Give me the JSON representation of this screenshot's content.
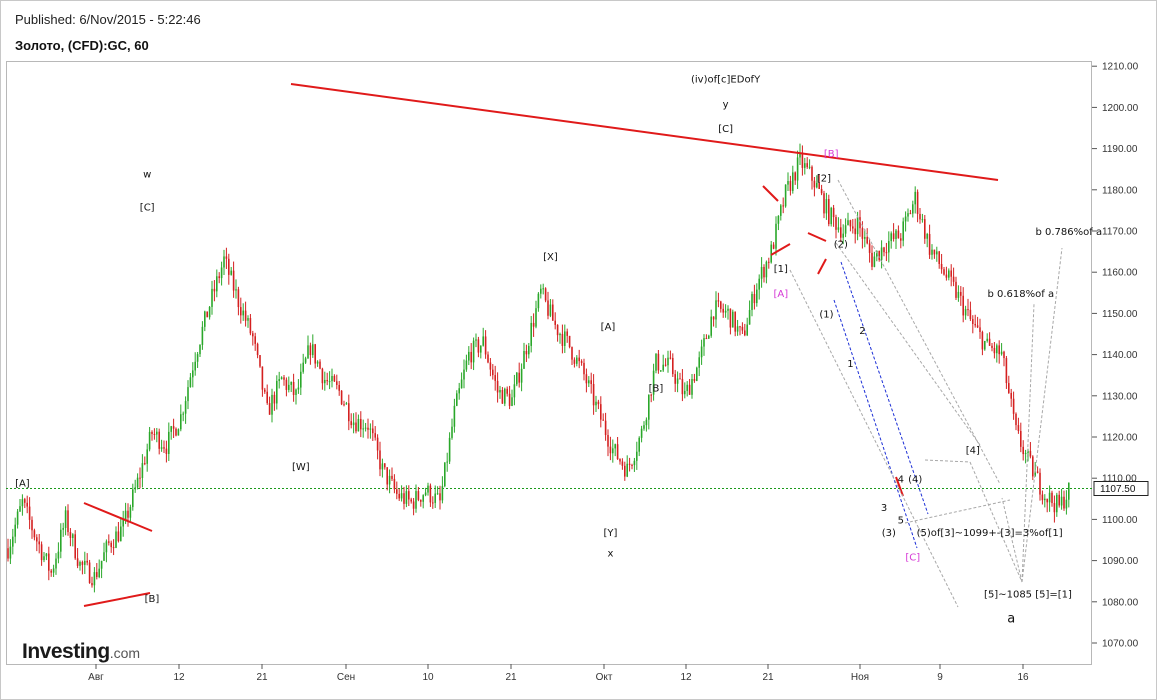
{
  "header": {
    "published": "Published: 6/Nov/2015 - 5:22:46",
    "symbol": "Золото, (CFD):GC, 60"
  },
  "logo": {
    "name": "Investing",
    "domain": ".com"
  },
  "colors": {
    "up": "#2aa72a",
    "down": "#d42020",
    "trendline": "#e01a1a",
    "price_line": "#1a9a1a",
    "channel": "#1c2fd6",
    "projection": "#a8a8a8",
    "pink_label": "#d63ad6"
  },
  "chart_data": {
    "type": "candlestick",
    "timeframe": "60",
    "ylim": [
      1065,
      1212
    ],
    "yticks": [
      1070,
      1080,
      1090,
      1100,
      1110,
      1120,
      1130,
      1140,
      1150,
      1160,
      1170,
      1180,
      1190,
      1200,
      1210
    ],
    "ytick_labels": [
      "1070.00",
      "1080.00",
      "1090.00",
      "1100.00",
      "1110.00",
      "1120.00",
      "1130.00",
      "1140.00",
      "1150.00",
      "1160.00",
      "1170.00",
      "1180.00",
      "1190.00",
      "1200.00",
      "1210.00"
    ],
    "xticks": [
      "Авг",
      "12",
      "21",
      "Сен",
      "10",
      "21",
      "Окт",
      "12",
      "21",
      "Ноя",
      "9",
      "16"
    ],
    "last_price": 1107.5,
    "last_price_label": "1107.50",
    "price_path": [
      [
        0,
        1093
      ],
      [
        6,
        1104
      ],
      [
        12,
        1095
      ],
      [
        18,
        1087
      ],
      [
        24,
        1100
      ],
      [
        30,
        1089
      ],
      [
        36,
        1086
      ],
      [
        42,
        1094
      ],
      [
        48,
        1098
      ],
      [
        54,
        1109
      ],
      [
        60,
        1121
      ],
      [
        66,
        1118
      ],
      [
        72,
        1125
      ],
      [
        78,
        1140
      ],
      [
        84,
        1152
      ],
      [
        90,
        1163
      ],
      [
        96,
        1153
      ],
      [
        102,
        1144
      ],
      [
        108,
        1126
      ],
      [
        114,
        1134
      ],
      [
        120,
        1130
      ],
      [
        126,
        1142
      ],
      [
        132,
        1134
      ],
      [
        138,
        1131
      ],
      [
        144,
        1124
      ],
      [
        150,
        1123
      ],
      [
        156,
        1112
      ],
      [
        162,
        1106
      ],
      [
        168,
        1104
      ],
      [
        174,
        1107
      ],
      [
        180,
        1104
      ],
      [
        186,
        1126
      ],
      [
        192,
        1140
      ],
      [
        198,
        1143
      ],
      [
        204,
        1131
      ],
      [
        210,
        1129
      ],
      [
        216,
        1142
      ],
      [
        222,
        1155
      ],
      [
        228,
        1147
      ],
      [
        234,
        1142
      ],
      [
        240,
        1135
      ],
      [
        246,
        1126
      ],
      [
        252,
        1117
      ],
      [
        258,
        1112
      ],
      [
        264,
        1121
      ],
      [
        270,
        1138
      ],
      [
        276,
        1137
      ],
      [
        282,
        1130
      ],
      [
        288,
        1138
      ],
      [
        294,
        1151
      ],
      [
        300,
        1150
      ],
      [
        306,
        1144
      ],
      [
        312,
        1157
      ],
      [
        318,
        1165
      ],
      [
        324,
        1179
      ],
      [
        330,
        1187
      ],
      [
        336,
        1182
      ],
      [
        342,
        1174
      ],
      [
        348,
        1170
      ],
      [
        354,
        1172
      ],
      [
        360,
        1163
      ],
      [
        366,
        1167
      ],
      [
        372,
        1169
      ],
      [
        378,
        1178
      ],
      [
        384,
        1166
      ],
      [
        390,
        1160
      ],
      [
        396,
        1154
      ],
      [
        402,
        1147
      ],
      [
        408,
        1142
      ],
      [
        414,
        1140
      ],
      [
        420,
        1121
      ],
      [
        426,
        1113
      ],
      [
        432,
        1106
      ],
      [
        438,
        1103
      ],
      [
        442,
        1107
      ]
    ],
    "annotations": [
      {
        "text": "w",
        "price": 1183,
        "slot": 58,
        "pink": false
      },
      {
        "text": "[C]",
        "price": 1175,
        "slot": 58,
        "pink": false
      },
      {
        "text": "[A]",
        "price": 1108,
        "slot": 6,
        "pink": false
      },
      {
        "text": "[B]",
        "price": 1080,
        "slot": 60,
        "pink": false
      },
      {
        "text": "[W]",
        "price": 1112,
        "slot": 122,
        "pink": false
      },
      {
        "text": "[X]",
        "price": 1163,
        "slot": 226,
        "pink": false
      },
      {
        "text": "[A]",
        "price": 1146,
        "slot": 250,
        "pink": false
      },
      {
        "text": "[B]",
        "price": 1131,
        "slot": 270,
        "pink": false
      },
      {
        "text": "[Y]",
        "price": 1096,
        "slot": 251,
        "pink": false
      },
      {
        "text": "x",
        "price": 1091,
        "slot": 251,
        "pink": false
      },
      {
        "text": "(iv)of[c]EDofY",
        "price": 1206,
        "slot": 299,
        "pink": false
      },
      {
        "text": "y",
        "price": 1200,
        "slot": 299,
        "pink": false
      },
      {
        "text": "[C]",
        "price": 1194,
        "slot": 299,
        "pink": false
      },
      {
        "text": "[B]",
        "price": 1188,
        "slot": 343,
        "pink": true
      },
      {
        "text": "[2]",
        "price": 1182,
        "slot": 340,
        "pink": false
      },
      {
        "text": "(2)",
        "price": 1166,
        "slot": 347,
        "pink": false
      },
      {
        "text": "[1]",
        "price": 1160,
        "slot": 322,
        "pink": false
      },
      {
        "text": "[A]",
        "price": 1154,
        "slot": 322,
        "pink": true
      },
      {
        "text": "(1)",
        "price": 1149,
        "slot": 341,
        "pink": false
      },
      {
        "text": "2",
        "price": 1145,
        "slot": 356,
        "pink": false
      },
      {
        "text": "1",
        "price": 1137,
        "slot": 351,
        "pink": false
      },
      {
        "text": "4",
        "price": 1109,
        "slot": 372,
        "pink": false
      },
      {
        "text": "(4)",
        "price": 1109,
        "slot": 378,
        "pink": false
      },
      {
        "text": "3",
        "price": 1102,
        "slot": 365,
        "pink": false
      },
      {
        "text": "5",
        "price": 1099,
        "slot": 372,
        "pink": false
      },
      {
        "text": "(3)",
        "price": 1096,
        "slot": 367,
        "pink": false
      },
      {
        "text": "(5)of[3]~1099+-[3]=3%of[1]",
        "price": 1096,
        "slot": 409,
        "pink": false
      },
      {
        "text": "[C]",
        "price": 1090,
        "slot": 377,
        "pink": true
      },
      {
        "text": "[4]",
        "price": 1116,
        "slot": 402,
        "pink": false
      },
      {
        "text": "b 0.786%of a",
        "price": 1169,
        "slot": 442,
        "pink": false
      },
      {
        "text": "b 0.618%of a",
        "price": 1154,
        "slot": 422,
        "pink": false
      },
      {
        "text": "[5]~1085 [5]=[1]",
        "price": 1081,
        "slot": 425,
        "pink": false
      },
      {
        "text": "a",
        "price": 1075,
        "slot": 418,
        "pink": false
      }
    ]
  }
}
